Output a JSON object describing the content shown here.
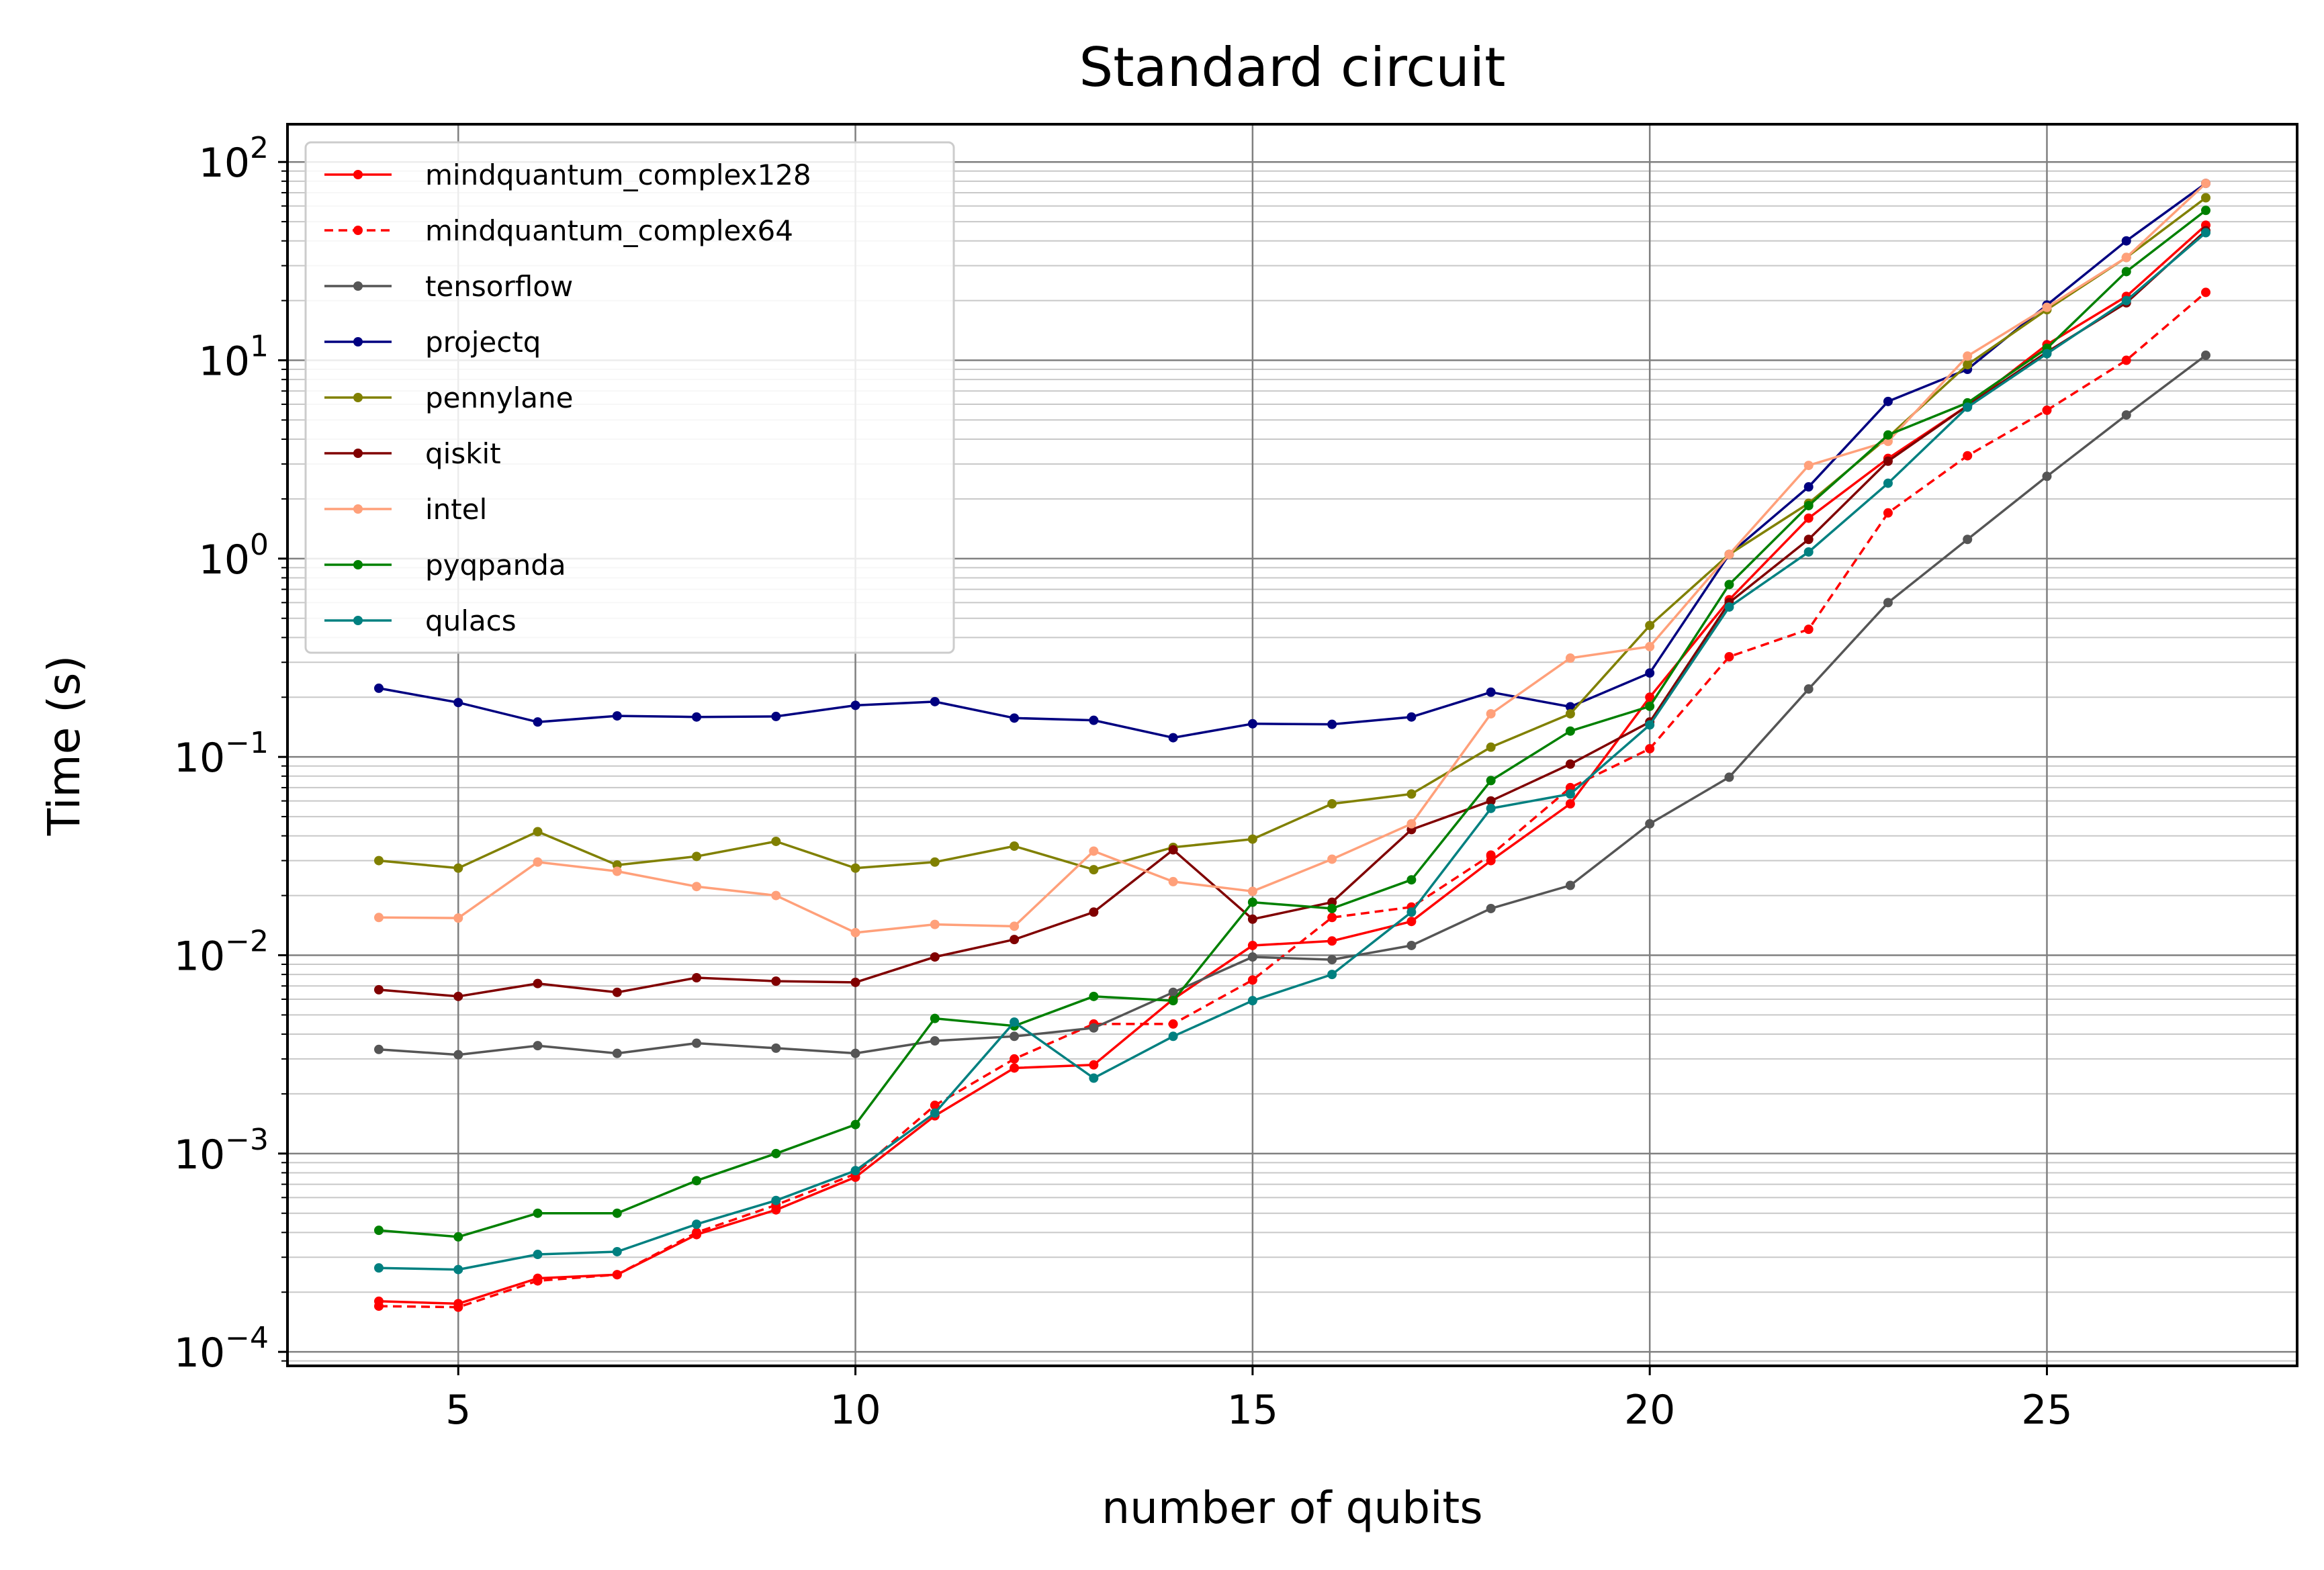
{
  "chart_data": {
    "type": "line",
    "title": "Standard circuit",
    "xlabel": "number of qubits",
    "ylabel": "Time (s)",
    "xlim": [
      2.85,
      28.15
    ],
    "ylim": [
      8.5e-05,
      155
    ],
    "yscale": "log",
    "grid": true,
    "legend_position": "top-left",
    "x_ticks": [
      5,
      10,
      15,
      20,
      25
    ],
    "y_ticks": [
      {
        "value": 0.0001,
        "base": "10",
        "exp": "−4"
      },
      {
        "value": 0.001,
        "base": "10",
        "exp": "−3"
      },
      {
        "value": 0.01,
        "base": "10",
        "exp": "−2"
      },
      {
        "value": 0.1,
        "base": "10",
        "exp": "−1"
      },
      {
        "value": 1,
        "base": "10",
        "exp": "0"
      },
      {
        "value": 10,
        "base": "10",
        "exp": "1"
      },
      {
        "value": 100,
        "base": "10",
        "exp": "2"
      }
    ],
    "x": [
      4,
      5,
      6,
      7,
      8,
      9,
      10,
      11,
      12,
      13,
      14,
      15,
      16,
      17,
      18,
      19,
      20,
      21,
      22,
      23,
      24,
      25,
      26,
      27
    ],
    "series": [
      {
        "name": "mindquantum_complex128",
        "color": "#ff0000",
        "dashed": false,
        "values": [
          0.00018,
          0.000175,
          0.000235,
          0.000245,
          0.00039,
          0.00052,
          0.00076,
          0.00155,
          0.0027,
          0.0028,
          0.006,
          0.0112,
          0.0118,
          0.0148,
          0.03,
          0.058,
          0.2,
          0.62,
          1.6,
          3.2,
          5.9,
          12.0,
          21.0,
          48.0
        ]
      },
      {
        "name": "mindquantum_complex64",
        "color": "#ff0000",
        "dashed": true,
        "values": [
          0.00017,
          0.000168,
          0.000228,
          0.000245,
          0.0004,
          0.00055,
          0.00079,
          0.00175,
          0.003,
          0.0045,
          0.0045,
          0.0075,
          0.0155,
          0.0175,
          0.032,
          0.07,
          0.11,
          0.32,
          0.44,
          1.7,
          3.3,
          5.6,
          10.0,
          22.0
        ]
      },
      {
        "name": "tensorflow",
        "color": "#555555",
        "dashed": false,
        "values": [
          0.00335,
          0.00315,
          0.0035,
          0.0032,
          0.0036,
          0.0034,
          0.0032,
          0.0037,
          0.0039,
          0.0043,
          0.0065,
          0.0098,
          0.0095,
          0.0112,
          0.0172,
          0.0225,
          0.046,
          0.079,
          0.22,
          0.6,
          1.25,
          2.6,
          5.3,
          10.6
        ]
      },
      {
        "name": "projectq",
        "color": "#000080",
        "dashed": false,
        "values": [
          0.222,
          0.188,
          0.15,
          0.161,
          0.159,
          0.16,
          0.182,
          0.19,
          0.157,
          0.153,
          0.125,
          0.147,
          0.146,
          0.159,
          0.212,
          0.179,
          0.265,
          1.05,
          2.3,
          6.2,
          9.0,
          19.0,
          40.0,
          78.0
        ]
      },
      {
        "name": "pennylane",
        "color": "#808000",
        "dashed": false,
        "values": [
          0.03,
          0.0275,
          0.042,
          0.0285,
          0.0315,
          0.0375,
          0.0275,
          0.0295,
          0.0355,
          0.027,
          0.035,
          0.0385,
          0.058,
          0.065,
          0.112,
          0.165,
          0.46,
          1.05,
          1.9,
          4.1,
          9.5,
          18.0,
          33.0,
          66.0
        ]
      },
      {
        "name": "qiskit",
        "color": "#800000",
        "dashed": false,
        "values": [
          0.0067,
          0.0062,
          0.0072,
          0.0065,
          0.0077,
          0.0074,
          0.0073,
          0.0098,
          0.012,
          0.0165,
          0.034,
          0.0152,
          0.0185,
          0.043,
          0.06,
          0.092,
          0.15,
          0.6,
          1.25,
          3.1,
          5.9,
          11.0,
          19.5,
          45.0
        ]
      },
      {
        "name": "intel",
        "color": "#ffa07a",
        "dashed": false,
        "values": [
          0.0155,
          0.0154,
          0.0295,
          0.0265,
          0.0222,
          0.02,
          0.013,
          0.0143,
          0.014,
          0.0335,
          0.0235,
          0.021,
          0.0305,
          0.046,
          0.165,
          0.315,
          0.36,
          1.05,
          2.95,
          3.9,
          10.5,
          18.5,
          33.0,
          78.0
        ]
      },
      {
        "name": "pyqpanda",
        "color": "#008000",
        "dashed": false,
        "values": [
          0.00041,
          0.00038,
          0.0005,
          0.0005,
          0.00073,
          0.001,
          0.0014,
          0.0048,
          0.0044,
          0.0062,
          0.0059,
          0.0185,
          0.0172,
          0.024,
          0.076,
          0.135,
          0.18,
          0.74,
          1.85,
          4.2,
          6.1,
          11.5,
          28.0,
          57.0
        ]
      },
      {
        "name": "qulacs",
        "color": "#008080",
        "dashed": false,
        "values": [
          0.000265,
          0.00026,
          0.00031,
          0.00032,
          0.00044,
          0.00058,
          0.00082,
          0.0016,
          0.0046,
          0.0024,
          0.0039,
          0.0059,
          0.008,
          0.0165,
          0.055,
          0.065,
          0.145,
          0.57,
          1.08,
          2.4,
          5.8,
          10.8,
          20.0,
          44.0
        ]
      }
    ]
  }
}
